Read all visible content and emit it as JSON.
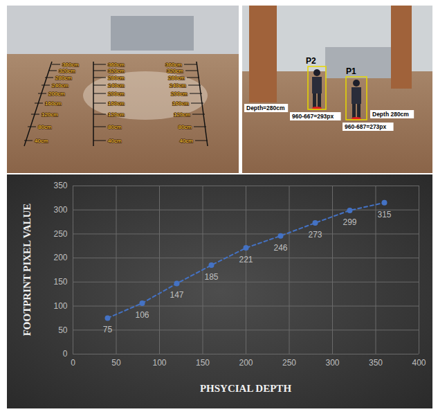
{
  "photos": {
    "rulers": [
      [
        "40cm",
        "80cm",
        "120cm",
        "160cm",
        "200cm",
        "240cm",
        "280cm",
        "320cm",
        "360cm"
      ],
      [
        "40cm",
        "80cm",
        "120cm",
        "160cm",
        "200cm",
        "240cm",
        "280cm",
        "320cm",
        "360cm"
      ],
      [
        "40cm",
        "80cm",
        "120cm",
        "160cm",
        "200cm",
        "240cm",
        "280cm",
        "320cm",
        "360cm"
      ]
    ],
    "people": [
      {
        "label": "P2",
        "pixels": "960-667=293px",
        "depth": "Depth=280cm"
      },
      {
        "label": "P1",
        "pixels": "960-687=273px",
        "depth": "Depth 280cm"
      }
    ]
  },
  "chart_data": {
    "type": "line",
    "xlabel": "PHSYCIAL DEPTH",
    "ylabel": "FOOTPRINT PIXEL VALUE",
    "x": [
      40,
      80,
      120,
      160,
      200,
      240,
      280,
      320,
      360
    ],
    "values": [
      75,
      106,
      147,
      185,
      221,
      246,
      273,
      299,
      315
    ],
    "color": "#4472c4",
    "marker": "circle",
    "line_style": "dashed",
    "xlim": [
      0,
      400
    ],
    "xticks": [
      0,
      50,
      100,
      150,
      200,
      250,
      300,
      350,
      400
    ],
    "ylim": [
      0,
      350
    ],
    "yticks": [
      0,
      50,
      100,
      150,
      200,
      250,
      300,
      350
    ],
    "grid": true,
    "data_labels": true
  }
}
